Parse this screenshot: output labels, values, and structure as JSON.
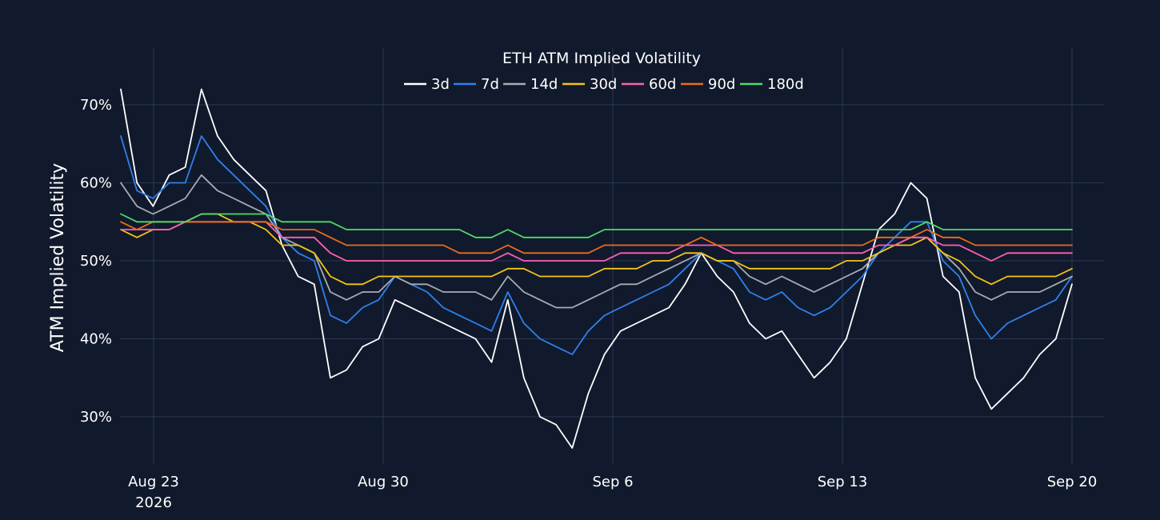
{
  "chart_data": {
    "type": "line",
    "title": "ETH ATM Implied Volatility",
    "ylabel": "ATM Implied Volatility",
    "xlabel": "",
    "x_axis_type": "date",
    "x_range": [
      "2026-08-22",
      "2026-09-20"
    ],
    "ylim": [
      24,
      76
    ],
    "y_ticks": [
      30,
      40,
      50,
      60,
      70
    ],
    "y_tick_labels": [
      "30%",
      "40%",
      "50%",
      "60%",
      "70%"
    ],
    "x_ticks": [
      "2026-08-23",
      "2026-08-30",
      "2026-09-06",
      "2026-09-13",
      "2026-09-20"
    ],
    "x_tick_labels": [
      [
        "Aug 23",
        "2026"
      ],
      [
        "Aug 30"
      ],
      [
        "Sep 6"
      ],
      [
        "Sep 13"
      ],
      [
        "Sep 20"
      ]
    ],
    "grid": true,
    "legend_position": "top-center",
    "x": [
      "2026-08-22",
      "2026-08-22",
      "2026-08-23",
      "2026-08-23",
      "2026-08-24",
      "2026-08-24",
      "2026-08-25",
      "2026-08-25",
      "2026-08-26",
      "2026-08-26",
      "2026-08-27",
      "2026-08-27",
      "2026-08-28",
      "2026-08-28",
      "2026-08-29",
      "2026-08-29",
      "2026-08-30",
      "2026-08-30",
      "2026-08-31",
      "2026-08-31",
      "2026-09-01",
      "2026-09-01",
      "2026-09-02",
      "2026-09-02",
      "2026-09-03",
      "2026-09-03",
      "2026-09-04",
      "2026-09-04",
      "2026-09-05",
      "2026-09-05",
      "2026-09-06",
      "2026-09-06",
      "2026-09-07",
      "2026-09-07",
      "2026-09-08",
      "2026-09-08",
      "2026-09-09",
      "2026-09-09",
      "2026-09-10",
      "2026-09-10",
      "2026-09-11",
      "2026-09-11",
      "2026-09-12",
      "2026-09-12",
      "2026-09-13",
      "2026-09-13",
      "2026-09-14",
      "2026-09-14",
      "2026-09-15",
      "2026-09-15",
      "2026-09-16",
      "2026-09-16",
      "2026-09-17",
      "2026-09-17",
      "2026-09-18",
      "2026-09-18",
      "2026-09-19",
      "2026-09-19",
      "2026-09-20",
      "2026-09-20"
    ],
    "series": [
      {
        "name": "3d",
        "color": "#ffffff",
        "values": [
          72,
          60,
          57,
          61,
          62,
          72,
          66,
          63,
          61,
          59,
          52,
          48,
          47,
          35,
          36,
          39,
          40,
          45,
          44,
          43,
          42,
          41,
          40,
          37,
          45,
          35,
          30,
          29,
          26,
          33,
          38,
          41,
          42,
          43,
          44,
          47,
          51,
          48,
          46,
          42,
          40,
          41,
          38,
          35,
          37,
          40,
          47,
          54,
          56,
          60,
          58,
          48,
          46,
          35,
          31,
          33,
          35,
          38,
          40,
          47
        ]
      },
      {
        "name": "7d",
        "color": "#2f80ed",
        "values": [
          66,
          59,
          58,
          60,
          60,
          66,
          63,
          61,
          59,
          57,
          53,
          51,
          50,
          43,
          42,
          44,
          45,
          48,
          47,
          46,
          44,
          43,
          42,
          41,
          46,
          42,
          40,
          39,
          38,
          41,
          43,
          44,
          45,
          46,
          47,
          49,
          51,
          50,
          49,
          46,
          45,
          46,
          44,
          43,
          44,
          46,
          48,
          51,
          53,
          55,
          55,
          50,
          48,
          43,
          40,
          42,
          43,
          44,
          45,
          48
        ]
      },
      {
        "name": "14d",
        "color": "#a8acb3",
        "values": [
          60,
          57,
          56,
          57,
          58,
          61,
          59,
          58,
          57,
          56,
          53,
          52,
          51,
          46,
          45,
          46,
          46,
          48,
          47,
          47,
          46,
          46,
          46,
          45,
          48,
          46,
          45,
          44,
          44,
          45,
          46,
          47,
          47,
          48,
          49,
          50,
          51,
          50,
          50,
          48,
          47,
          48,
          47,
          46,
          47,
          48,
          49,
          51,
          52,
          53,
          53,
          51,
          49,
          46,
          45,
          46,
          46,
          46,
          47,
          48
        ]
      },
      {
        "name": "30d",
        "color": "#f5c518",
        "values": [
          54,
          53,
          54,
          54,
          55,
          56,
          56,
          55,
          55,
          54,
          52,
          52,
          51,
          48,
          47,
          47,
          48,
          48,
          48,
          48,
          48,
          48,
          48,
          48,
          49,
          49,
          48,
          48,
          48,
          48,
          49,
          49,
          49,
          50,
          50,
          51,
          51,
          50,
          50,
          49,
          49,
          49,
          49,
          49,
          49,
          50,
          50,
          51,
          52,
          52,
          53,
          51,
          50,
          48,
          47,
          48,
          48,
          48,
          48,
          49
        ]
      },
      {
        "name": "60d",
        "color": "#ff5fb4",
        "values": [
          54,
          54,
          54,
          54,
          55,
          55,
          55,
          55,
          55,
          55,
          53,
          53,
          53,
          51,
          50,
          50,
          50,
          50,
          50,
          50,
          50,
          50,
          50,
          50,
          51,
          50,
          50,
          50,
          50,
          50,
          50,
          51,
          51,
          51,
          51,
          52,
          52,
          52,
          51,
          51,
          51,
          51,
          51,
          51,
          51,
          51,
          51,
          52,
          52,
          53,
          53,
          52,
          52,
          51,
          50,
          51,
          51,
          51,
          51,
          51
        ]
      },
      {
        "name": "90d",
        "color": "#ef6c1a",
        "values": [
          55,
          54,
          55,
          55,
          55,
          55,
          55,
          55,
          55,
          55,
          54,
          54,
          54,
          53,
          52,
          52,
          52,
          52,
          52,
          52,
          52,
          51,
          51,
          51,
          52,
          51,
          51,
          51,
          51,
          51,
          52,
          52,
          52,
          52,
          52,
          52,
          53,
          52,
          52,
          52,
          52,
          52,
          52,
          52,
          52,
          52,
          52,
          53,
          53,
          53,
          54,
          53,
          53,
          52,
          52,
          52,
          52,
          52,
          52,
          52
        ]
      },
      {
        "name": "180d",
        "color": "#4ddc67",
        "values": [
          56,
          55,
          55,
          55,
          55,
          56,
          56,
          56,
          56,
          56,
          55,
          55,
          55,
          55,
          54,
          54,
          54,
          54,
          54,
          54,
          54,
          54,
          53,
          53,
          54,
          53,
          53,
          53,
          53,
          53,
          54,
          54,
          54,
          54,
          54,
          54,
          54,
          54,
          54,
          54,
          54,
          54,
          54,
          54,
          54,
          54,
          54,
          54,
          54,
          54,
          55,
          54,
          54,
          54,
          54,
          54,
          54,
          54,
          54,
          54
        ]
      }
    ]
  }
}
